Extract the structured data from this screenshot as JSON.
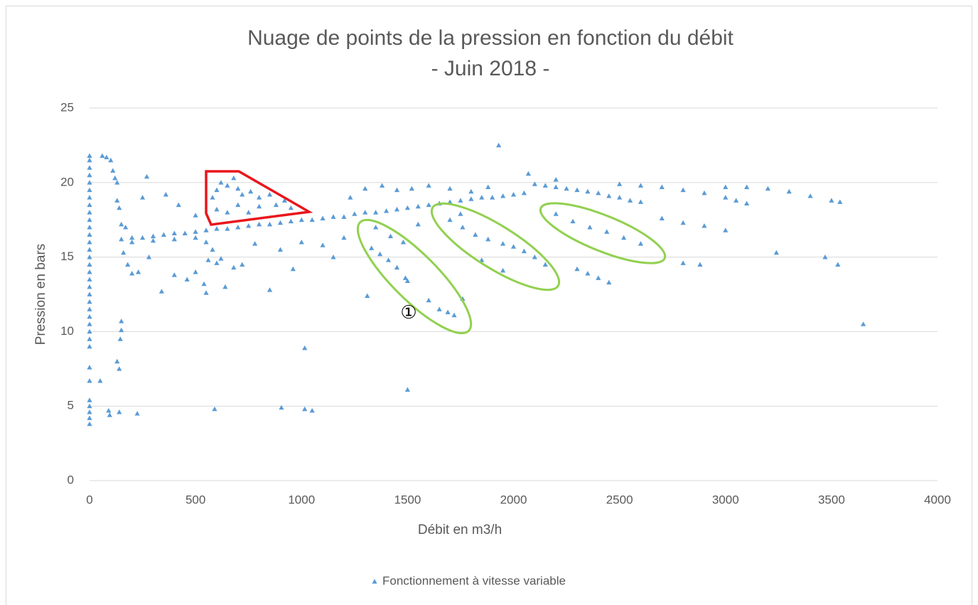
{
  "chart_data": {
    "type": "scatter",
    "title": "Nuage de points de la pression en fonction du débit",
    "subtitle": "- Juin 2018 -",
    "xlabel": "Débit en m3/h",
    "ylabel": "Pression en bars",
    "xlim": [
      0,
      4000
    ],
    "ylim": [
      0,
      25
    ],
    "xticks": [
      0,
      500,
      1000,
      1500,
      2000,
      2500,
      3000,
      3500,
      4000
    ],
    "yticks": [
      0,
      5,
      10,
      15,
      20,
      25
    ],
    "grid": true,
    "legend": "bottom",
    "annotations": [
      "①"
    ],
    "series": [
      {
        "name": "Fonctionnement à vitesse variable",
        "color": "#5b9bd5",
        "x": [
          0,
          0,
          0,
          0,
          0,
          0,
          0,
          0,
          0,
          0,
          0,
          0,
          0,
          0,
          0,
          0,
          0,
          0,
          0,
          0,
          0,
          0,
          0,
          0,
          0,
          0,
          0,
          0,
          0,
          0,
          0,
          0,
          0,
          0,
          60,
          80,
          100,
          110,
          120,
          130,
          140,
          130,
          150,
          170,
          50,
          90,
          95,
          140,
          225,
          590,
          905,
          1015,
          1050,
          1015,
          1500,
          130,
          140,
          150,
          150,
          145,
          3650,
          150,
          200,
          250,
          300,
          350,
          400,
          450,
          500,
          550,
          600,
          650,
          700,
          750,
          800,
          850,
          900,
          950,
          1000,
          1050,
          1100,
          1150,
          1200,
          200,
          300,
          400,
          500,
          550,
          580,
          160,
          180,
          200,
          230,
          280,
          340,
          400,
          460,
          500,
          540,
          560,
          600,
          620,
          640,
          680,
          720,
          780,
          850,
          900,
          960,
          1000,
          1100,
          1150,
          1200,
          550,
          500,
          270,
          360,
          250,
          420,
          600,
          620,
          650,
          680,
          700,
          720,
          760,
          800,
          850,
          880,
          920,
          950,
          600,
          650,
          700,
          750,
          800,
          580,
          1250,
          1300,
          1350,
          1400,
          1450,
          1500,
          1550,
          1230,
          1300,
          1380,
          1450,
          1520,
          1350,
          1420,
          1480,
          1550,
          1600,
          1650,
          1700,
          1750,
          1800,
          1850,
          1900,
          1950,
          2000,
          2050,
          1600,
          1700,
          1800,
          1880,
          1750,
          2100,
          2150,
          2200,
          2250,
          2300,
          2350,
          2400,
          2450,
          2500,
          2550,
          2600,
          2070,
          2200,
          2500,
          2600,
          2700,
          2800,
          2900,
          3000,
          3050,
          3100,
          3000,
          3100,
          3200,
          3300,
          3400,
          3500,
          3540,
          1330,
          1370,
          1410,
          1450,
          1490,
          1500,
          1310,
          1600,
          1650,
          1690,
          1720,
          1760,
          1700,
          1760,
          1820,
          1880,
          1950,
          2000,
          2050,
          2100,
          2150,
          1850,
          1950,
          2200,
          2280,
          2360,
          2440,
          2520,
          2600,
          2300,
          2350,
          2400,
          2450,
          2700,
          2800,
          2900,
          3000,
          2800,
          2880,
          3240,
          3470,
          3530,
          1930
        ],
        "values": [
          3.8,
          4.2,
          4.6,
          5.0,
          5.4,
          6.7,
          7.6,
          9.0,
          9.5,
          10.0,
          10.5,
          11.0,
          11.5,
          12.0,
          12.5,
          13.0,
          13.5,
          14.0,
          14.5,
          15.0,
          15.5,
          16.0,
          16.5,
          17.0,
          17.5,
          18.0,
          18.5,
          19.0,
          19.5,
          20.0,
          20.5,
          21.0,
          21.5,
          21.8,
          21.8,
          21.7,
          21.5,
          20.8,
          20.3,
          20.0,
          18.3,
          18.8,
          17.2,
          17.0,
          6.7,
          4.7,
          4.4,
          4.6,
          4.5,
          4.8,
          4.9,
          4.8,
          4.7,
          8.9,
          6.1,
          8.0,
          7.5,
          10.7,
          10.1,
          9.5,
          10.5,
          16.2,
          16.3,
          16.3,
          16.4,
          16.5,
          16.6,
          16.6,
          16.7,
          16.8,
          16.9,
          16.9,
          17.0,
          17.1,
          17.2,
          17.2,
          17.3,
          17.4,
          17.5,
          17.5,
          17.6,
          17.7,
          17.7,
          16.0,
          16.1,
          16.2,
          16.3,
          16.0,
          15.5,
          15.3,
          14.5,
          13.9,
          14.0,
          15.0,
          12.7,
          13.8,
          13.5,
          14.0,
          13.2,
          14.8,
          14.6,
          14.9,
          13.0,
          14.3,
          14.5,
          15.9,
          12.8,
          15.5,
          14.2,
          16.0,
          15.8,
          15.0,
          16.3,
          12.6,
          17.8,
          20.4,
          19.2,
          19.0,
          18.5,
          19.5,
          20.0,
          19.8,
          20.3,
          19.6,
          19.2,
          19.4,
          19.0,
          19.2,
          18.5,
          18.8,
          18.3,
          18.2,
          18.0,
          18.5,
          18.0,
          18.4,
          19.0,
          17.9,
          18.0,
          18.0,
          18.1,
          18.2,
          18.3,
          18.4,
          19.0,
          19.6,
          19.8,
          19.5,
          19.6,
          17.0,
          16.4,
          16.0,
          17.2,
          18.5,
          18.6,
          18.7,
          18.8,
          18.9,
          19.0,
          19.0,
          19.1,
          19.2,
          19.3,
          19.8,
          19.6,
          19.4,
          19.7,
          17.9,
          19.9,
          19.8,
          19.7,
          19.6,
          19.5,
          19.4,
          19.3,
          19.1,
          19.0,
          18.8,
          18.7,
          20.6,
          20.2,
          19.9,
          19.8,
          19.7,
          19.5,
          19.3,
          19.0,
          18.8,
          18.6,
          19.7,
          19.7,
          19.6,
          19.4,
          19.1,
          18.8,
          18.7,
          15.6,
          15.2,
          14.8,
          14.3,
          13.6,
          13.4,
          12.4,
          12.1,
          11.5,
          11.3,
          11.1,
          12.2,
          17.5,
          17.0,
          16.5,
          16.2,
          15.9,
          15.7,
          15.4,
          15.0,
          14.5,
          14.8,
          14.1,
          17.9,
          17.4,
          17.0,
          16.7,
          16.3,
          15.9,
          14.2,
          13.9,
          13.6,
          13.3,
          17.6,
          17.3,
          17.1,
          16.8,
          14.6,
          14.5,
          15.3,
          15.0,
          14.5,
          22.5
        ]
      }
    ]
  }
}
